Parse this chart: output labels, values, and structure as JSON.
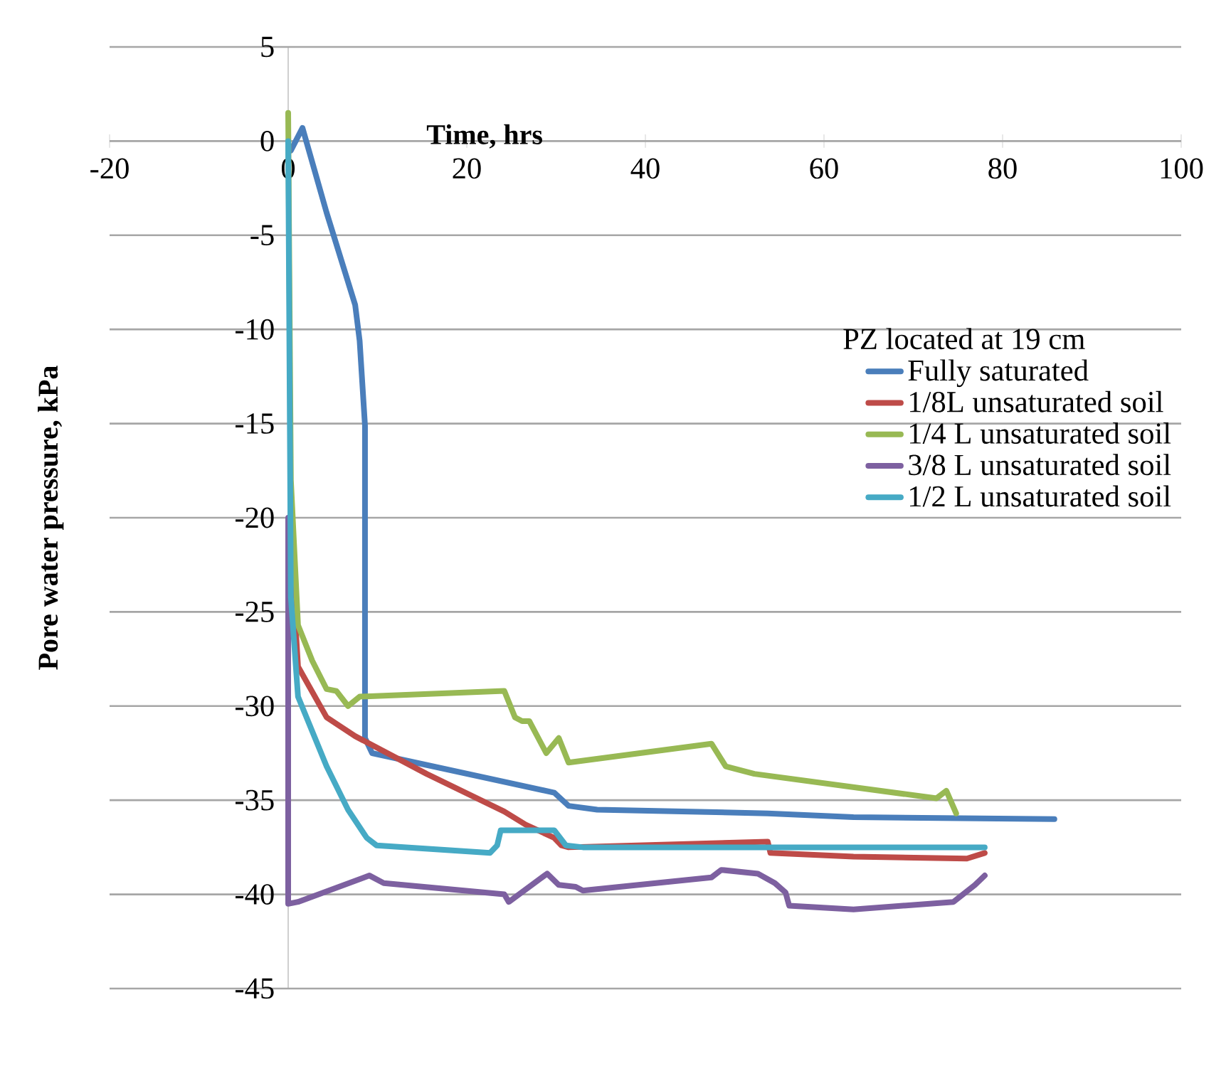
{
  "chart_data": {
    "type": "line",
    "xlabel": "Time, hrs",
    "ylabel": "Pore water pressure, kPa",
    "legend_title": "PZ located at 19 cm",
    "xlim": [
      -20,
      100
    ],
    "ylim": [
      -45,
      5
    ],
    "xticks": [
      -20,
      0,
      20,
      40,
      60,
      80,
      100
    ],
    "yticks": [
      5,
      0,
      -5,
      -10,
      -15,
      -20,
      -25,
      -30,
      -35,
      -40,
      -45
    ],
    "grid": "y",
    "legend": "right",
    "marker": "none",
    "line_style": "solid",
    "series": [
      {
        "name": "Fully saturated",
        "color": "#4a7ebb",
        "x": [
          0.3,
          1.6,
          4.3,
          7.5,
          8.0,
          8.6,
          8.6,
          9.4,
          29.8,
          31.4,
          34.6,
          53.7,
          63.3,
          85.8
        ],
        "values": [
          -0.5,
          0.7,
          -3.8,
          -8.7,
          -10.6,
          -15.1,
          -31.7,
          -32.5,
          -34.6,
          -35.3,
          -35.5,
          -35.7,
          -35.9,
          -36.0
        ]
      },
      {
        "name": "1/8L unsaturated soil",
        "color": "#be4b48",
        "x": [
          0.1,
          1.1,
          4.3,
          7.5,
          15.5,
          24.2,
          26.6,
          29.8,
          30.6,
          31.4,
          53.7,
          54.0,
          63.3,
          76.0,
          78.0
        ],
        "values": [
          -20,
          -27.9,
          -30.6,
          -31.6,
          -33.6,
          -35.6,
          -36.3,
          -37.0,
          -37.4,
          -37.5,
          -37.2,
          -37.8,
          -38.0,
          -38.1,
          -37.8
        ]
      },
      {
        "name": "1/4 L unsaturated soil",
        "color": "#98b954",
        "x": [
          0,
          0.3,
          1.1,
          2.7,
          4.3,
          5.4,
          6.7,
          8.0,
          24.2,
          25.4,
          26.2,
          27.0,
          28.9,
          30.3,
          31.4,
          47.4,
          49.0,
          52.2,
          72.6,
          73.7,
          74.8
        ],
        "values": [
          1.5,
          -18,
          -25.7,
          -27.6,
          -29.1,
          -29.2,
          -30.0,
          -29.5,
          -29.2,
          -30.6,
          -30.8,
          -30.8,
          -32.5,
          -31.7,
          -33.0,
          -32.0,
          -33.2,
          -33.6,
          -34.9,
          -34.5,
          -35.7
        ]
      },
      {
        "name": "3/8 L unsaturated soil",
        "color": "#7d60a0",
        "x": [
          0,
          0,
          1.1,
          9.1,
          10.7,
          24.2,
          24.7,
          29.0,
          30.3,
          32.2,
          33.0,
          47.4,
          48.5,
          52.6,
          54.5,
          55.7,
          56.1,
          63.3,
          74.5,
          76.9,
          78.0
        ],
        "values": [
          -20,
          -40.5,
          -40.4,
          -39.0,
          -39.4,
          -40.0,
          -40.4,
          -38.9,
          -39.5,
          -39.6,
          -39.8,
          -39.1,
          -38.7,
          -38.9,
          -39.4,
          -39.9,
          -40.6,
          -40.8,
          -40.4,
          -39.5,
          -39.0
        ]
      },
      {
        "name": "1/2 L unsaturated soil",
        "color": "#46aac5",
        "x": [
          0,
          0.3,
          1.1,
          4.3,
          6.7,
          8.8,
          9.9,
          22.6,
          23.4,
          23.8,
          29.8,
          31.1,
          33.0,
          78.0
        ],
        "values": [
          0,
          -24.2,
          -29.5,
          -33.2,
          -35.5,
          -37.0,
          -37.4,
          -37.8,
          -37.4,
          -36.6,
          -36.6,
          -37.4,
          -37.5,
          -37.5
        ]
      }
    ]
  }
}
